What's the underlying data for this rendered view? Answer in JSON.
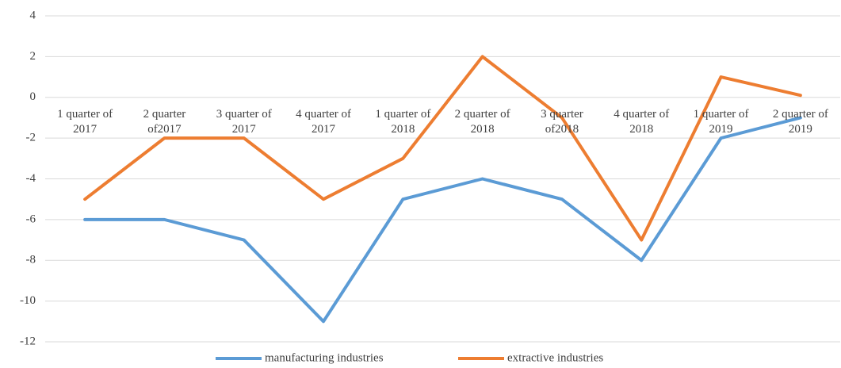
{
  "chart_data": {
    "type": "line",
    "categories": [
      "1 quarter of\n2017",
      "2 quarter\nof2017",
      "3 quarter of\n2017",
      "4 quarter of\n2017",
      "1 quarter of\n2018",
      "2 quarter of\n2018",
      "3 quarter\nof2018",
      "4 quarter of\n2018",
      "1 quarter of\n2019",
      "2 quarter of\n2019"
    ],
    "series": [
      {
        "name": "manufacturing industries",
        "color": "#5b9bd5",
        "values": [
          -6,
          -6,
          -7,
          -11,
          -5,
          -4,
          -5,
          -8,
          -2,
          -1
        ]
      },
      {
        "name": "extractive industries",
        "color": "#ed7d31",
        "values": [
          -5,
          -2,
          -2,
          -5,
          -3,
          2,
          -1,
          -7,
          1,
          0.1
        ]
      }
    ],
    "ylim": [
      -12,
      4
    ],
    "yticks": [
      -12,
      -10,
      -8,
      -6,
      -4,
      -2,
      0,
      2,
      4
    ],
    "grid": true,
    "legend": "bottom"
  }
}
